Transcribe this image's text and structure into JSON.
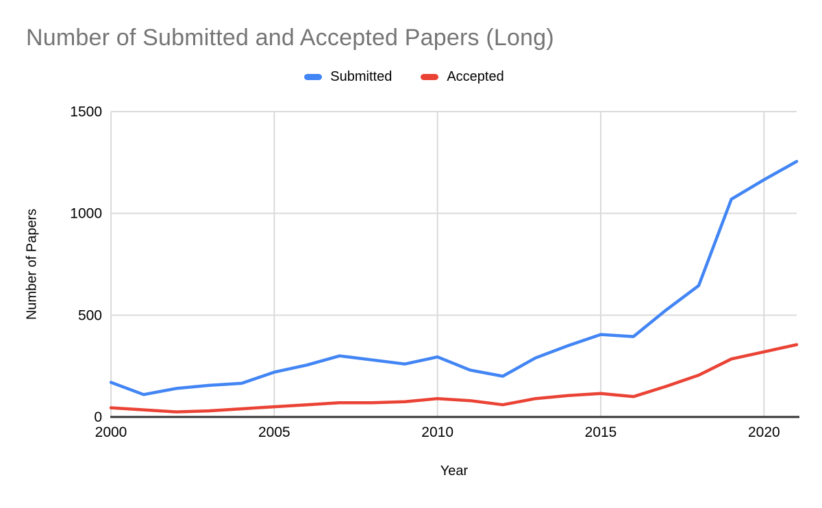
{
  "title": "Number of Submitted and Accepted Papers (Long)",
  "legend": {
    "items": [
      {
        "label": "Submitted",
        "color": "#4285F4"
      },
      {
        "label": "Accepted",
        "color": "#EA4335"
      }
    ]
  },
  "axes": {
    "x_title": "Year",
    "y_title": "Number of Papers"
  },
  "colors": {
    "title": "#757575",
    "gridline": "#DADADA",
    "plot_border": "#DADADA",
    "axis_line": "#333333",
    "tick_label": "#000000",
    "background": "#FFFFFF"
  },
  "chart_data": {
    "type": "line",
    "title": "Number of Submitted and Accepted Papers (Long)",
    "xlabel": "Year",
    "ylabel": "Number of Papers",
    "x": [
      2000,
      2001,
      2002,
      2003,
      2004,
      2005,
      2006,
      2007,
      2008,
      2009,
      2010,
      2011,
      2012,
      2013,
      2014,
      2015,
      2016,
      2017,
      2018,
      2019,
      2020,
      2021
    ],
    "series": [
      {
        "name": "Submitted",
        "color": "#4285F4",
        "values": [
          170,
          110,
          140,
          155,
          165,
          220,
          255,
          300,
          280,
          260,
          295,
          230,
          200,
          290,
          350,
          405,
          395,
          525,
          645,
          1070,
          1165,
          1255
        ]
      },
      {
        "name": "Accepted",
        "color": "#EA4335",
        "values": [
          45,
          35,
          25,
          30,
          40,
          50,
          60,
          70,
          70,
          75,
          90,
          80,
          60,
          90,
          105,
          115,
          100,
          150,
          205,
          285,
          320,
          355
        ]
      }
    ],
    "xlim": [
      2000,
      2021
    ],
    "ylim": [
      0,
      1500
    ],
    "xticks": [
      2000,
      2005,
      2010,
      2015,
      2020
    ],
    "yticks": [
      0,
      500,
      1000,
      1500
    ],
    "grid": true,
    "legend_position": "top"
  }
}
